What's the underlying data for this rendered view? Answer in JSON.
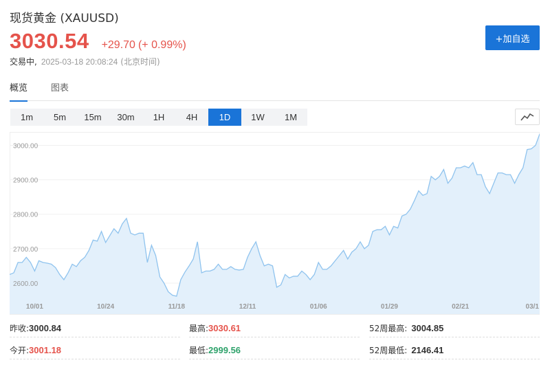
{
  "header": {
    "name": "现货黄金",
    "symbol": "(XAUUSD)",
    "price": "3030.54",
    "change": "+29.70",
    "change_pct": "(+ 0.99%)",
    "status": "交易中,",
    "timestamp": "2025-03-18 20:08:24",
    "timezone": "(北京时间)",
    "watch_label": "+加自选"
  },
  "tabs": [
    "概览",
    "图表"
  ],
  "periods": [
    "1m",
    "5m",
    "15m",
    "30m",
    "1H",
    "4H",
    "1D",
    "1W",
    "1M"
  ],
  "active_period": "1D",
  "colors": {
    "up": "#e5534b",
    "down": "#2fa26b",
    "accent": "#1a74d8",
    "line": "#8fc3ee",
    "fill": "#e3f0fb"
  },
  "chart_data": {
    "type": "area",
    "title": "",
    "xlabel": "",
    "ylabel": "",
    "ylim": [
      2550,
      3035
    ],
    "yticks": [
      "3000.00",
      "2900.00",
      "2800.00",
      "2700.00",
      "2600.00"
    ],
    "ytick_values": [
      3000,
      2900,
      2800,
      2700,
      2600
    ],
    "xtick_labels": [
      "10/01",
      "10/24",
      "11/18",
      "12/11",
      "01/06",
      "01/29",
      "02/21",
      "03/1"
    ],
    "xtick_index": [
      6,
      23,
      40,
      57,
      74,
      91,
      108,
      125
    ],
    "values": [
      2625,
      2630,
      2660,
      2660,
      2675,
      2660,
      2635,
      2665,
      2660,
      2658,
      2655,
      2645,
      2625,
      2610,
      2630,
      2655,
      2648,
      2665,
      2675,
      2695,
      2725,
      2722,
      2750,
      2718,
      2738,
      2758,
      2745,
      2772,
      2788,
      2745,
      2740,
      2745,
      2745,
      2660,
      2710,
      2680,
      2618,
      2600,
      2575,
      2565,
      2562,
      2610,
      2632,
      2650,
      2670,
      2720,
      2630,
      2635,
      2635,
      2640,
      2655,
      2640,
      2640,
      2648,
      2640,
      2638,
      2640,
      2675,
      2700,
      2720,
      2680,
      2650,
      2655,
      2650,
      2588,
      2595,
      2625,
      2615,
      2620,
      2620,
      2635,
      2625,
      2610,
      2625,
      2660,
      2640,
      2640,
      2650,
      2665,
      2680,
      2695,
      2670,
      2690,
      2700,
      2720,
      2700,
      2710,
      2750,
      2755,
      2755,
      2765,
      2740,
      2765,
      2760,
      2795,
      2800,
      2815,
      2840,
      2868,
      2855,
      2860,
      2910,
      2900,
      2910,
      2930,
      2890,
      2905,
      2935,
      2935,
      2940,
      2935,
      2950,
      2915,
      2915,
      2880,
      2860,
      2890,
      2920,
      2920,
      2915,
      2915,
      2890,
      2915,
      2935,
      2988,
      2990,
      3000,
      3033
    ]
  },
  "stats": {
    "prev_close_label": "昨收:",
    "prev_close": "3000.84",
    "high_label": "最高:",
    "high": "3030.61",
    "high_52w_label": "52周最高:",
    "high_52w": "3004.85",
    "open_label": "今开:",
    "open": "3001.18",
    "low_label": "最低:",
    "low": "2999.56",
    "low_52w_label": "52周最低:",
    "low_52w": "2146.41"
  }
}
